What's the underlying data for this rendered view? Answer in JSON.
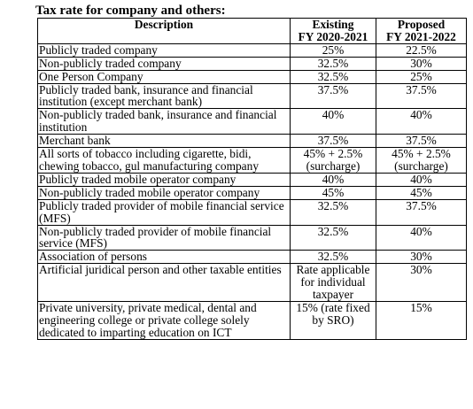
{
  "title": "Tax rate for company and others:",
  "headers": {
    "description": "Description",
    "existing_line1": "Existing",
    "existing_line2": "FY 2020-2021",
    "proposed_line1": "Proposed",
    "proposed_line2": "FY 2021-2022"
  },
  "rows": [
    {
      "desc": "Publicly traded company",
      "existing": "25%",
      "proposed": "22.5%"
    },
    {
      "desc": "Non-publicly traded company",
      "existing": "32.5%",
      "proposed": "30%"
    },
    {
      "desc": "One Person Company",
      "existing": "32.5%",
      "proposed": "25%"
    },
    {
      "desc": "Publicly traded bank, insurance and financial institution (except merchant bank)",
      "existing": "37.5%",
      "proposed": "37.5%"
    },
    {
      "desc": "Non-publicly traded bank, insurance and financial institution",
      "existing": "40%",
      "proposed": "40%"
    },
    {
      "desc": "Merchant bank",
      "existing": "37.5%",
      "proposed": "37.5%"
    },
    {
      "desc": "All sorts of tobacco including cigarette, bidi, chewing tobacco, gul manufacturing company",
      "existing": "45% + 2.5% (surcharge)",
      "proposed": "45% + 2.5% (surcharge)"
    },
    {
      "desc": "Publicly traded mobile operator company",
      "existing": "40%",
      "proposed": "40%"
    },
    {
      "desc": "Non-publicly traded mobile operator company",
      "existing": "45%",
      "proposed": "45%"
    },
    {
      "desc": "Publicly traded provider of mobile financial service (MFS)",
      "existing": "32.5%",
      "proposed": "37.5%"
    },
    {
      "desc": "Non-publicly traded provider of mobile financial service (MFS)",
      "existing": "32.5%",
      "proposed": "40%"
    },
    {
      "desc": "Association of persons",
      "existing": "32.5%",
      "proposed": "30%"
    },
    {
      "desc": "Artificial juridical person and other taxable entities",
      "existing": "Rate applicable for individual taxpayer",
      "proposed": "30%"
    },
    {
      "desc": "Private university, private medical, dental and engineering college or private college solely dedicated to imparting education on ICT",
      "existing": "15% (rate fixed by SRO)",
      "proposed": "15%"
    }
  ]
}
